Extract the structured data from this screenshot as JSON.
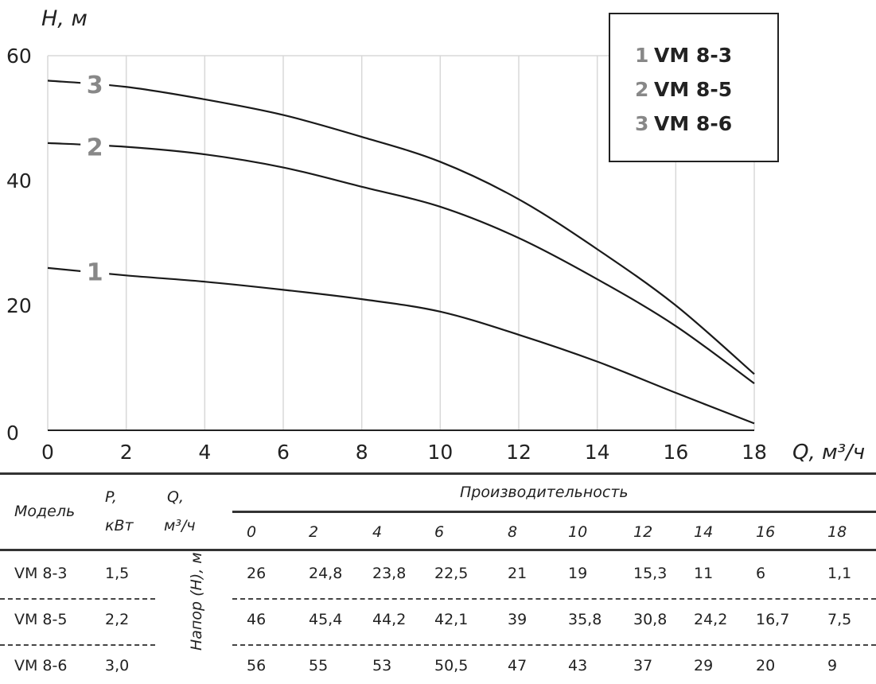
{
  "chart_data": {
    "type": "line",
    "xlabel": "Q, м³/ч",
    "ylabel": "H, м",
    "xlim": [
      0,
      18
    ],
    "ylim": [
      0,
      60
    ],
    "x_ticks": [
      "0",
      "2",
      "4",
      "6",
      "8",
      "10",
      "12",
      "14",
      "16",
      "18"
    ],
    "y_ticks": [
      "0",
      "20",
      "40",
      "60"
    ],
    "grid": true,
    "legend_position": "top-right",
    "x": [
      0,
      2,
      4,
      6,
      8,
      10,
      12,
      14,
      16,
      18
    ],
    "series": [
      {
        "name": "VM 8-3",
        "label": "1",
        "values": [
          26,
          24.8,
          23.8,
          22.5,
          21,
          19,
          15.3,
          11,
          6,
          1.1
        ]
      },
      {
        "name": "VM 8-5",
        "label": "2",
        "values": [
          46,
          45.4,
          44.2,
          42.1,
          39,
          35.8,
          30.8,
          24.2,
          16.7,
          7.5
        ]
      },
      {
        "name": "VM 8-6",
        "label": "3",
        "values": [
          56,
          55,
          53,
          50.5,
          47,
          43,
          37,
          29,
          20,
          9
        ]
      }
    ]
  },
  "table": {
    "headers": {
      "model": "Модель",
      "power": "P,",
      "power_unit": "кВт",
      "flow": "Q,",
      "flow_unit": "м³/ч",
      "group": "Производительность",
      "head": "Напор (H), м"
    },
    "flows": [
      "0",
      "2",
      "4",
      "6",
      "8",
      "10",
      "12",
      "14",
      "16",
      "18"
    ],
    "rows": [
      {
        "model": "VM 8-3",
        "power": "1,5",
        "values": [
          "26",
          "24,8",
          "23,8",
          "22,5",
          "21",
          "19",
          "15,3",
          "11",
          "6",
          "1,1"
        ]
      },
      {
        "model": "VM 8-5",
        "power": "2,2",
        "values": [
          "46",
          "45,4",
          "44,2",
          "42,1",
          "39",
          "35,8",
          "30,8",
          "24,2",
          "16,7",
          "7,5"
        ]
      },
      {
        "model": "VM 8-6",
        "power": "3,0",
        "values": [
          "56",
          "55",
          "53",
          "50,5",
          "47",
          "43",
          "37",
          "29",
          "20",
          "9"
        ]
      }
    ]
  },
  "colors": {
    "line": "#1a1a1a",
    "label_gray": "#888888",
    "grid": "#d8d8d8"
  }
}
